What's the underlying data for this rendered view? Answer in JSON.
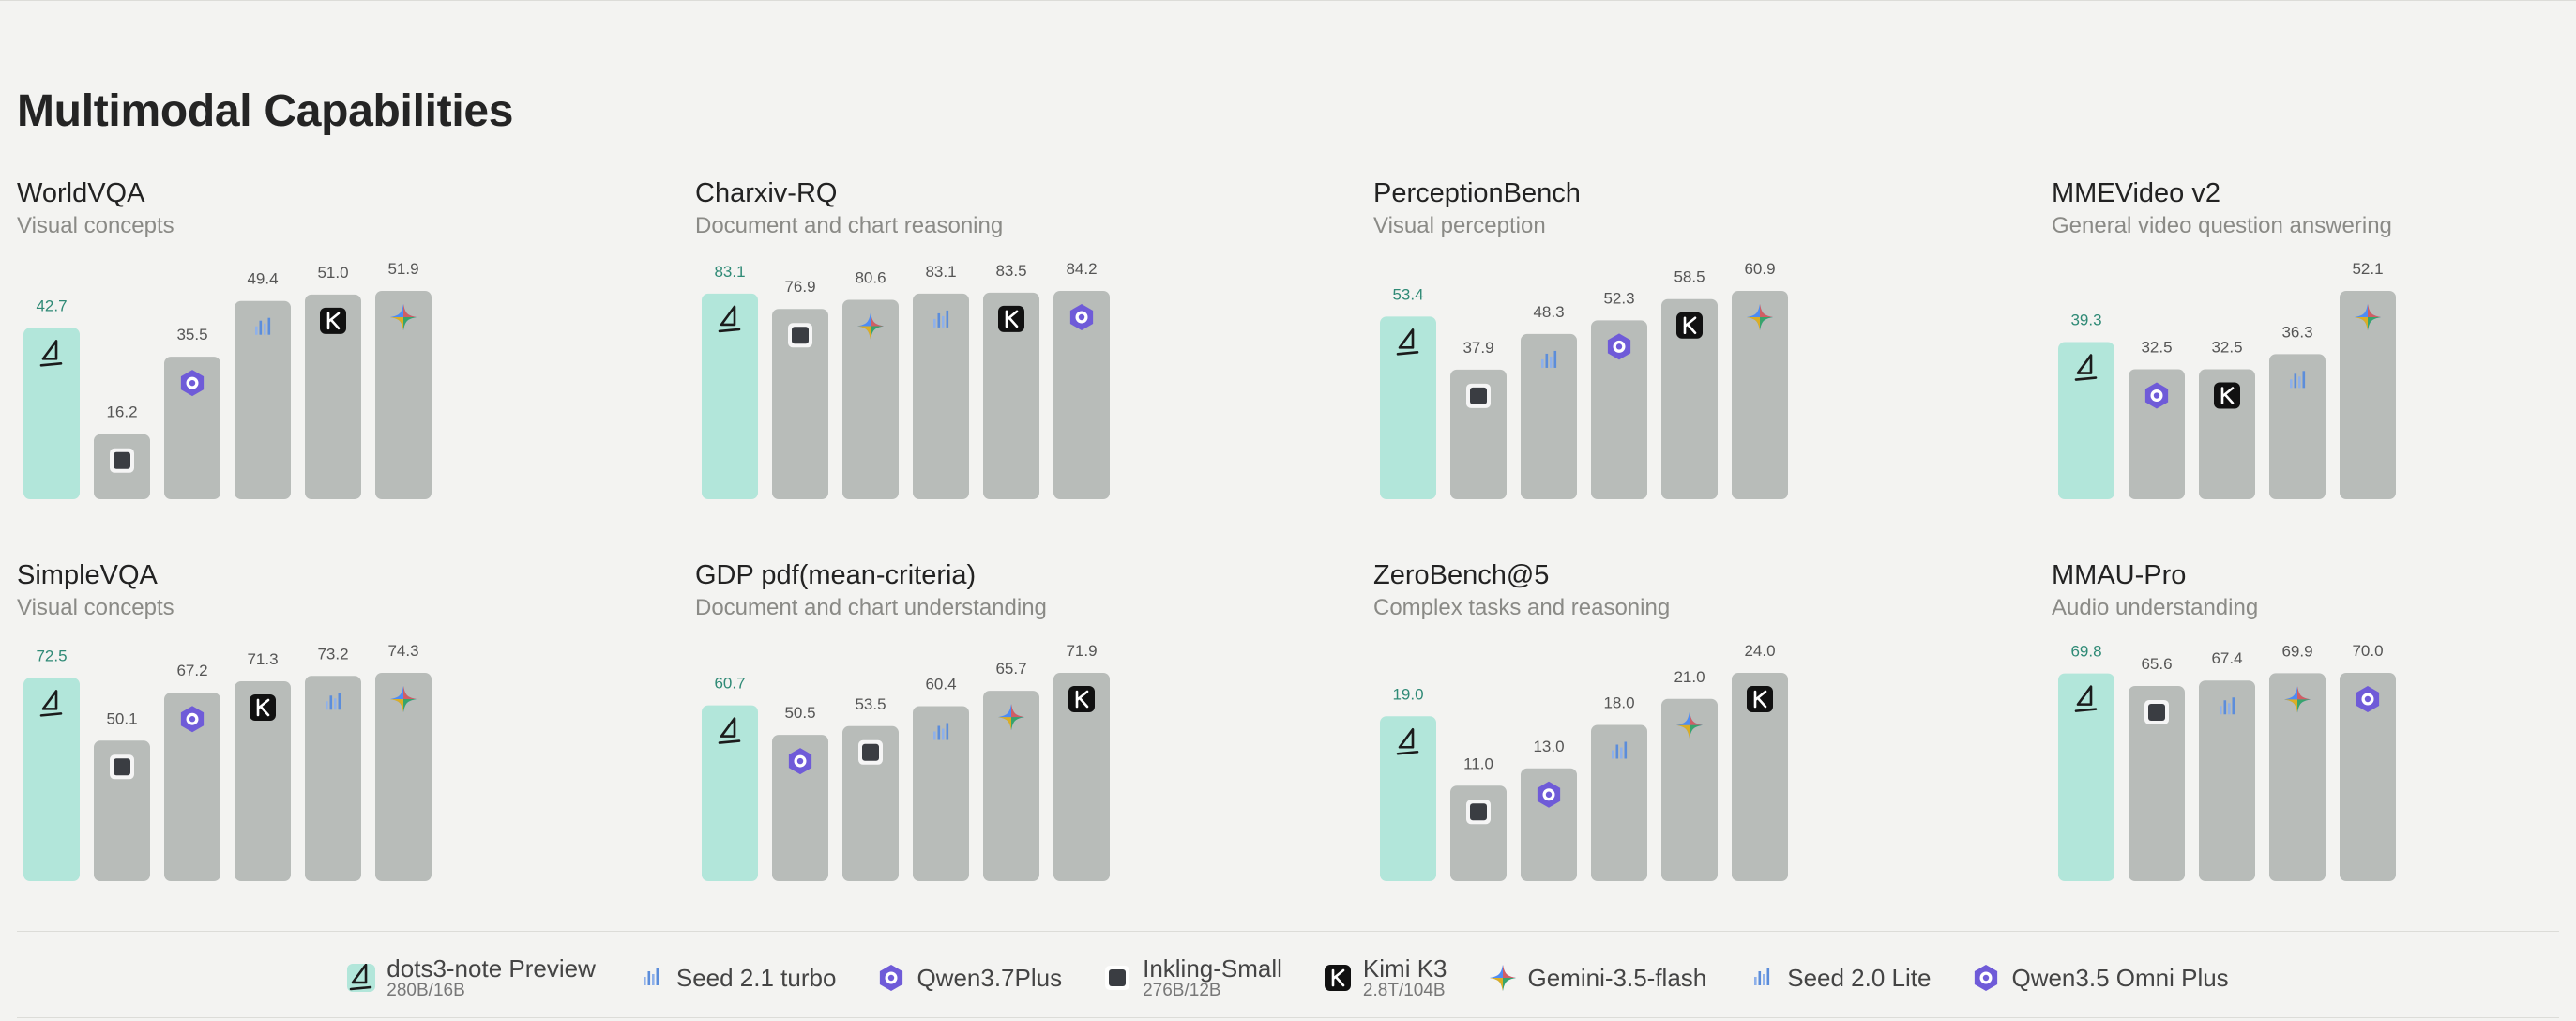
{
  "section_title": "Multimodal Capabilities",
  "colors": {
    "highlight_bar": "#b2e6da",
    "highlight_label": "#2f8a76",
    "bar": "#b8bcb9",
    "label": "#555555"
  },
  "models": [
    {
      "key": "dots3",
      "name": "dots3-note Preview",
      "sub": "280B/16B",
      "icon": "sail-icon",
      "color": "#b2e6da"
    },
    {
      "key": "seed21",
      "name": "Seed 2.1 turbo",
      "sub": "",
      "icon": "seed-bars-icon",
      "color": "#5b8ddb"
    },
    {
      "key": "qwen37",
      "name": "Qwen3.7Plus",
      "sub": "",
      "icon": "qwen-star-icon",
      "color": "#6f5bd8"
    },
    {
      "key": "inkling",
      "name": "Inkling-Small",
      "sub": "276B/12B",
      "icon": "square-icon",
      "color": "#3a3d42"
    },
    {
      "key": "kimi",
      "name": "Kimi K3",
      "sub": "2.8T/104B",
      "icon": "kimi-k-icon",
      "color": "#111111"
    },
    {
      "key": "gemini",
      "name": "Gemini-3.5-flash",
      "sub": "",
      "icon": "gemini-sparkle-icon",
      "color": "#4e8cf5"
    },
    {
      "key": "seed20",
      "name": "Seed 2.0 Lite",
      "sub": "",
      "icon": "seed-bars-icon",
      "color": "#5b8ddb"
    },
    {
      "key": "qwen35",
      "name": "Qwen3.5 Omni Plus",
      "sub": "",
      "icon": "qwen-star-icon",
      "color": "#6f5bd8"
    }
  ],
  "chart_data": [
    {
      "type": "bar",
      "title": "WorldVQA",
      "subtitle": "Visual concepts",
      "series": [
        {
          "values": [
            42.7,
            16.2,
            35.5,
            49.4,
            51.0,
            51.9
          ]
        }
      ],
      "value_labels": [
        "42.7",
        "16.2",
        "35.5",
        "49.4",
        "51.0",
        "51.9"
      ],
      "icons": [
        "dots3",
        "inkling",
        "qwen37",
        "seed21",
        "kimi",
        "gemini"
      ],
      "ylim": [
        0,
        51.9
      ]
    },
    {
      "type": "bar",
      "title": "Charxiv-RQ",
      "subtitle": "Document and chart reasoning",
      "series": [
        {
          "values": [
            83.1,
            76.9,
            80.6,
            83.1,
            83.5,
            84.2
          ]
        }
      ],
      "value_labels": [
        "83.1",
        "76.9",
        "80.6",
        "83.1",
        "83.5",
        "84.2"
      ],
      "icons": [
        "dots3",
        "inkling",
        "gemini",
        "seed21",
        "kimi",
        "qwen37"
      ],
      "ylim": [
        0,
        84.2
      ]
    },
    {
      "type": "bar",
      "title": "PerceptionBench",
      "subtitle": "Visual perception",
      "series": [
        {
          "values": [
            53.4,
            37.9,
            48.3,
            52.3,
            58.5,
            60.9
          ]
        }
      ],
      "value_labels": [
        "53.4",
        "37.9",
        "48.3",
        "52.3",
        "58.5",
        "60.9"
      ],
      "icons": [
        "dots3",
        "inkling",
        "seed21",
        "qwen37",
        "kimi",
        "gemini"
      ],
      "ylim": [
        0,
        60.9
      ]
    },
    {
      "type": "bar",
      "title": "MMEVideo v2",
      "subtitle": "General video question answering",
      "series": [
        {
          "values": [
            39.3,
            32.5,
            32.5,
            36.3,
            52.1
          ]
        }
      ],
      "value_labels": [
        "39.3",
        "32.5",
        "32.5",
        "36.3",
        "52.1"
      ],
      "icons": [
        "dots3",
        "qwen35",
        "kimi",
        "seed20",
        "gemini"
      ],
      "ylim": [
        0,
        52.1
      ]
    },
    {
      "type": "bar",
      "title": "SimpleVQA",
      "subtitle": "Visual concepts",
      "series": [
        {
          "values": [
            72.5,
            50.1,
            67.2,
            71.3,
            73.2,
            74.3
          ]
        }
      ],
      "value_labels": [
        "72.5",
        "50.1",
        "67.2",
        "71.3",
        "73.2",
        "74.3"
      ],
      "icons": [
        "dots3",
        "inkling",
        "qwen37",
        "kimi",
        "seed21",
        "gemini"
      ],
      "ylim": [
        0,
        74.3
      ]
    },
    {
      "type": "bar",
      "title": "GDP pdf(mean-criteria)",
      "subtitle": "Document and chart understanding",
      "series": [
        {
          "values": [
            60.7,
            50.5,
            53.5,
            60.4,
            65.7,
            71.9
          ]
        }
      ],
      "value_labels": [
        "60.7",
        "50.5",
        "53.5",
        "60.4",
        "65.7",
        "71.9"
      ],
      "icons": [
        "dots3",
        "qwen37",
        "inkling",
        "seed21",
        "gemini",
        "kimi"
      ],
      "ylim": [
        0,
        71.9
      ]
    },
    {
      "type": "bar",
      "title": "ZeroBench@5",
      "subtitle": "Complex tasks and reasoning",
      "series": [
        {
          "values": [
            19.0,
            11.0,
            13.0,
            18.0,
            21.0,
            24.0
          ]
        }
      ],
      "value_labels": [
        "19.0",
        "11.0",
        "13.0",
        "18.0",
        "21.0",
        "24.0"
      ],
      "icons": [
        "dots3",
        "inkling",
        "qwen37",
        "seed21",
        "gemini",
        "kimi"
      ],
      "ylim": [
        0,
        24.0
      ]
    },
    {
      "type": "bar",
      "title": "MMAU-Pro",
      "subtitle": "Audio understanding",
      "series": [
        {
          "values": [
            69.8,
            65.6,
            67.4,
            69.9,
            70.0
          ]
        }
      ],
      "value_labels": [
        "69.8",
        "65.6",
        "67.4",
        "69.9",
        "70.0"
      ],
      "icons": [
        "dots3",
        "inkling",
        "seed20",
        "gemini",
        "qwen35"
      ],
      "ylim": [
        0,
        70.0
      ]
    }
  ]
}
